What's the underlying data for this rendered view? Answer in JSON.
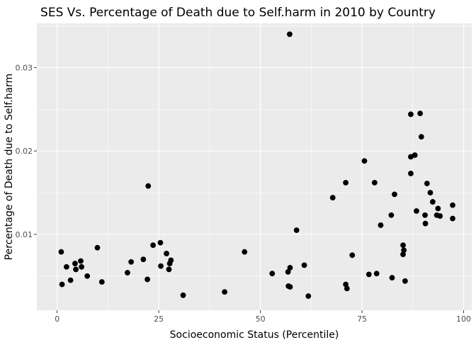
{
  "chart_data": {
    "type": "scatter",
    "title": "SES Vs. Percentage of Death due to Self.harm in 2010 by Country",
    "xlabel": "Socioeconomic Status (Percentile)",
    "ylabel": "Percentage of Death due to Self.harm",
    "xlim": [
      -5,
      102
    ],
    "ylim": [
      0.0009,
      0.0353
    ],
    "x_ticks": [
      0,
      25,
      50,
      75,
      100
    ],
    "x_tick_labels": [
      "0",
      "25",
      "50",
      "75",
      "100"
    ],
    "y_ticks": [
      0.01,
      0.02,
      0.03
    ],
    "y_tick_labels": [
      "0.01",
      "0.02",
      "0.03"
    ],
    "grid": true,
    "legend": "none",
    "colors": {
      "panel": "#ebebeb",
      "grid": "#ffffff",
      "point": "#000000",
      "tick_text": "#4d4d4d"
    },
    "points": [
      {
        "x": 1.0,
        "y": 0.0079
      },
      {
        "x": 1.2,
        "y": 0.004
      },
      {
        "x": 2.3,
        "y": 0.0061
      },
      {
        "x": 3.3,
        "y": 0.0045
      },
      {
        "x": 4.4,
        "y": 0.0065
      },
      {
        "x": 4.6,
        "y": 0.0058
      },
      {
        "x": 5.8,
        "y": 0.0068
      },
      {
        "x": 6.0,
        "y": 0.0061
      },
      {
        "x": 7.4,
        "y": 0.005
      },
      {
        "x": 9.9,
        "y": 0.0084
      },
      {
        "x": 11.0,
        "y": 0.0043
      },
      {
        "x": 17.3,
        "y": 0.0054
      },
      {
        "x": 18.2,
        "y": 0.0067
      },
      {
        "x": 21.2,
        "y": 0.007
      },
      {
        "x": 22.2,
        "y": 0.0046
      },
      {
        "x": 22.4,
        "y": 0.0158
      },
      {
        "x": 23.6,
        "y": 0.0087
      },
      {
        "x": 25.4,
        "y": 0.009
      },
      {
        "x": 25.5,
        "y": 0.0062
      },
      {
        "x": 26.9,
        "y": 0.0077
      },
      {
        "x": 27.5,
        "y": 0.0058
      },
      {
        "x": 27.7,
        "y": 0.0065
      },
      {
        "x": 28.0,
        "y": 0.0069
      },
      {
        "x": 31.0,
        "y": 0.0027
      },
      {
        "x": 41.2,
        "y": 0.0031
      },
      {
        "x": 46.1,
        "y": 0.0079
      },
      {
        "x": 52.9,
        "y": 0.0053
      },
      {
        "x": 56.8,
        "y": 0.0055
      },
      {
        "x": 56.9,
        "y": 0.0038
      },
      {
        "x": 57.2,
        "y": 0.034
      },
      {
        "x": 57.3,
        "y": 0.006
      },
      {
        "x": 57.3,
        "y": 0.0037
      },
      {
        "x": 58.9,
        "y": 0.0105
      },
      {
        "x": 60.8,
        "y": 0.0063
      },
      {
        "x": 61.8,
        "y": 0.0026
      },
      {
        "x": 67.8,
        "y": 0.0144
      },
      {
        "x": 71.0,
        "y": 0.0162
      },
      {
        "x": 71.0,
        "y": 0.004
      },
      {
        "x": 71.3,
        "y": 0.0035
      },
      {
        "x": 72.6,
        "y": 0.0075
      },
      {
        "x": 75.6,
        "y": 0.0188
      },
      {
        "x": 76.7,
        "y": 0.0052
      },
      {
        "x": 78.1,
        "y": 0.0162
      },
      {
        "x": 78.6,
        "y": 0.0053
      },
      {
        "x": 79.6,
        "y": 0.0111
      },
      {
        "x": 82.2,
        "y": 0.0123
      },
      {
        "x": 82.4,
        "y": 0.0048
      },
      {
        "x": 83.0,
        "y": 0.0148
      },
      {
        "x": 85.1,
        "y": 0.0087
      },
      {
        "x": 85.1,
        "y": 0.0076
      },
      {
        "x": 85.3,
        "y": 0.0081
      },
      {
        "x": 85.6,
        "y": 0.0044
      },
      {
        "x": 87.0,
        "y": 0.0244
      },
      {
        "x": 87.0,
        "y": 0.0193
      },
      {
        "x": 87.0,
        "y": 0.0173
      },
      {
        "x": 88.0,
        "y": 0.0195
      },
      {
        "x": 88.4,
        "y": 0.0128
      },
      {
        "x": 89.3,
        "y": 0.0245
      },
      {
        "x": 89.6,
        "y": 0.0217
      },
      {
        "x": 90.5,
        "y": 0.0123
      },
      {
        "x": 90.6,
        "y": 0.0113
      },
      {
        "x": 91.0,
        "y": 0.0161
      },
      {
        "x": 91.8,
        "y": 0.015
      },
      {
        "x": 92.4,
        "y": 0.0139
      },
      {
        "x": 93.4,
        "y": 0.0123
      },
      {
        "x": 93.7,
        "y": 0.0131
      },
      {
        "x": 94.2,
        "y": 0.0122
      },
      {
        "x": 97.3,
        "y": 0.0135
      },
      {
        "x": 97.3,
        "y": 0.0119
      }
    ]
  }
}
